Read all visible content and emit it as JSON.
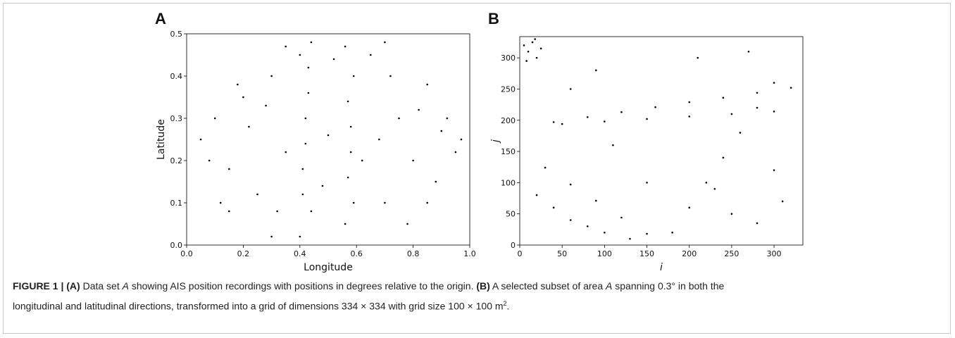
{
  "chart_data": [
    {
      "type": "scatter",
      "label": "A",
      "x_label": "Longitude",
      "y_label": "Latitude",
      "color": "#000000",
      "x": [
        0.05,
        0.1,
        0.15,
        0.2,
        0.25,
        0.3,
        0.35,
        0.12,
        0.22,
        0.32,
        0.08,
        0.18,
        0.28,
        0.65,
        0.7,
        0.75,
        0.8,
        0.85,
        0.9,
        0.95,
        0.68,
        0.78,
        0.88,
        0.72,
        0.82,
        0.92,
        0.97,
        0.4,
        0.41,
        0.42,
        0.43,
        0.44,
        0.4,
        0.42,
        0.44,
        0.41,
        0.43,
        0.56,
        0.57,
        0.58,
        0.59,
        0.56,
        0.58,
        0.57,
        0.59,
        0.5,
        0.48,
        0.52,
        0.62,
        0.35,
        0.15,
        0.3,
        0.7,
        0.85
      ],
      "values": [
        0.25,
        0.3,
        0.18,
        0.35,
        0.12,
        0.4,
        0.22,
        0.1,
        0.28,
        0.08,
        0.2,
        0.38,
        0.33,
        0.45,
        0.1,
        0.3,
        0.2,
        0.38,
        0.27,
        0.22,
        0.25,
        0.05,
        0.15,
        0.4,
        0.32,
        0.3,
        0.25,
        0.02,
        0.12,
        0.24,
        0.36,
        0.48,
        0.45,
        0.3,
        0.08,
        0.18,
        0.42,
        0.05,
        0.16,
        0.28,
        0.4,
        0.47,
        0.22,
        0.34,
        0.1,
        0.26,
        0.14,
        0.44,
        0.2,
        0.47,
        0.08,
        0.02,
        0.48,
        0.1
      ],
      "xlim": [
        0,
        1
      ],
      "ylim": [
        0,
        0.5
      ],
      "xticks": [
        {
          "value": 0,
          "label": "0.0"
        },
        {
          "value": 0.2,
          "label": "0.2"
        },
        {
          "value": 0.4,
          "label": "0.4"
        },
        {
          "value": 0.6,
          "label": "0.6"
        },
        {
          "value": 0.8,
          "label": "0.8"
        },
        {
          "value": 1,
          "label": "1.0"
        }
      ],
      "yticks": [
        {
          "value": 0,
          "label": "0.0"
        },
        {
          "value": 0.1,
          "label": "0.1"
        },
        {
          "value": 0.2,
          "label": "0.2"
        },
        {
          "value": 0.3,
          "label": "0.3"
        },
        {
          "value": 0.4,
          "label": "0.4"
        },
        {
          "value": 0.5,
          "label": "0.5"
        }
      ]
    },
    {
      "type": "scatter",
      "label": "B",
      "x_label": "i",
      "y_label": "j",
      "color": "#000000",
      "x": [
        5,
        10,
        15,
        20,
        25,
        8,
        18,
        40,
        80,
        120,
        160,
        200,
        240,
        280,
        320,
        30,
        60,
        90,
        120,
        150,
        180,
        200,
        220,
        240,
        260,
        280,
        300,
        50,
        100,
        150,
        200,
        250,
        300,
        20,
        40,
        60,
        80,
        100,
        130,
        150,
        90,
        250,
        300,
        280,
        60,
        110,
        210,
        310,
        230,
        270
      ],
      "values": [
        320,
        310,
        325,
        300,
        315,
        295,
        330,
        197,
        205,
        213,
        221,
        229,
        236,
        244,
        252,
        124,
        97,
        71,
        44,
        18,
        20,
        60,
        100,
        140,
        180,
        220,
        260,
        194,
        198,
        202,
        206,
        210,
        214,
        80,
        60,
        40,
        30,
        20,
        10,
        100,
        280,
        50,
        120,
        35,
        250,
        160,
        300,
        70,
        90,
        310
      ],
      "xlim": [
        0,
        334
      ],
      "ylim": [
        0,
        334
      ],
      "xticks": [
        0,
        50,
        100,
        150,
        200,
        250,
        300
      ],
      "yticks": [
        0,
        50,
        100,
        150,
        200,
        250,
        300
      ]
    }
  ],
  "caption": [
    "FIGURE 1 | ",
    "(A)",
    " Data set ",
    "A",
    " showing AIS position recordings with positions in degrees relative to the origin. ",
    "(B)",
    " A selected subset of area ",
    "A",
    " spanning 0.3° in both the",
    "longitudinal and latitudinal directions, transformed into a grid of dimensions 334 × 334 with grid size 100 × 100 m",
    "2",
    "."
  ]
}
